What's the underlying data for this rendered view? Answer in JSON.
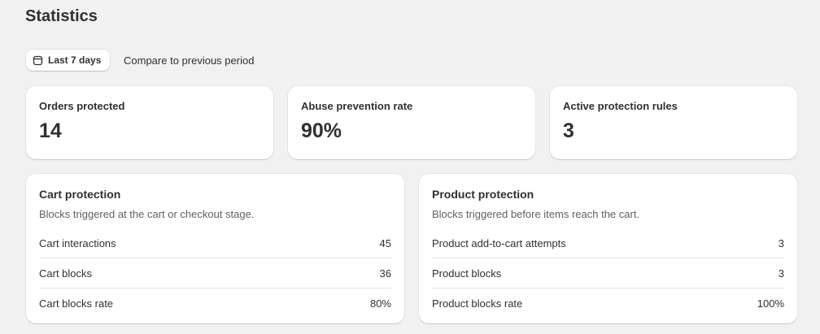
{
  "header": {
    "title": "Statistics"
  },
  "filters": {
    "date_range": "Last 7 days",
    "compare": "Compare to previous period"
  },
  "stats": [
    {
      "label": "Orders protected",
      "value": "14"
    },
    {
      "label": "Abuse prevention rate",
      "value": "90%"
    },
    {
      "label": "Active protection rules",
      "value": "3"
    }
  ],
  "sections": [
    {
      "title": "Cart protection",
      "subtitle": "Blocks triggered at the cart or checkout stage.",
      "rows": [
        {
          "label": "Cart interactions",
          "value": "45"
        },
        {
          "label": "Cart blocks",
          "value": "36"
        },
        {
          "label": "Cart blocks rate",
          "value": "80%"
        }
      ]
    },
    {
      "title": "Product protection",
      "subtitle": "Blocks triggered before items reach the cart.",
      "rows": [
        {
          "label": "Product add-to-cart attempts",
          "value": "3"
        },
        {
          "label": "Product blocks",
          "value": "3"
        },
        {
          "label": "Product blocks rate",
          "value": "100%"
        }
      ]
    }
  ]
}
